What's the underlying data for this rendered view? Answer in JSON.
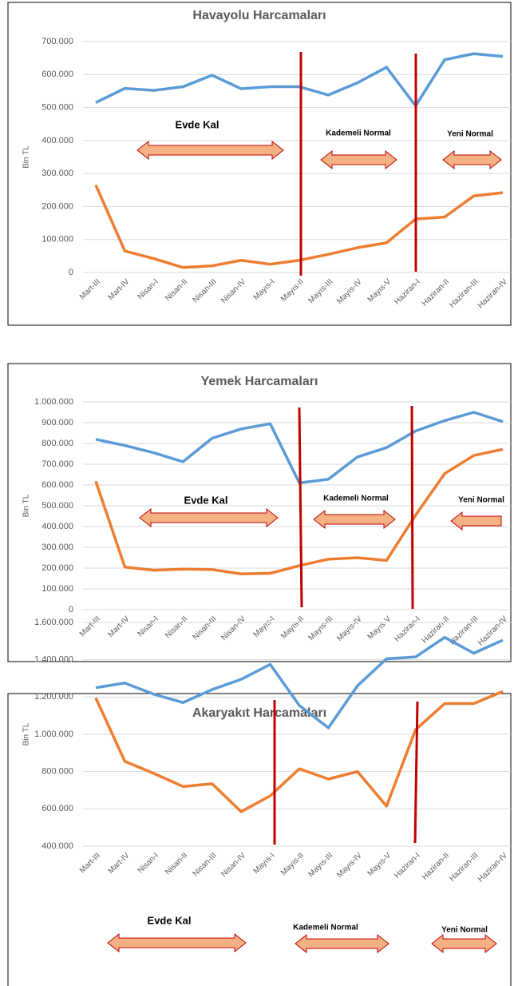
{
  "chart_data": [
    {
      "type": "line",
      "title": "Havayolu Harcamaları",
      "y_label": "Bin TL",
      "categories": [
        "Mart-III",
        "Mart-IV",
        "Nisan-I",
        "Nisan-II",
        "Nisan-III",
        "Nisan-IV",
        "Mayıs-I",
        "Mayıs-II",
        "Mayıs-III",
        "Mayıs-IV",
        "Mayıs-V",
        "Haziran-I",
        "Haziran-II",
        "Haziran-III",
        "Haziran-IV"
      ],
      "series": [
        {
          "color": "#5b9bd5",
          "values": [
            515000,
            558000,
            552000,
            563000,
            598000,
            557000,
            563000,
            563000,
            538000,
            575000,
            622000,
            505000,
            645000,
            663000,
            655000
          ]
        },
        {
          "color": "#ed7d31",
          "values": [
            265000,
            65000,
            42000,
            15000,
            20000,
            37000,
            25000,
            37000,
            55000,
            75000,
            90000,
            162000,
            168000,
            232000,
            242000
          ]
        }
      ],
      "ylim": [
        0,
        700000
      ],
      "yticks": [
        0,
        {
          "value": 100000,
          "label": "100.000"
        },
        {
          "value": 200000,
          "label": "200.000"
        },
        {
          "value": 300000,
          "label": "300.000"
        },
        {
          "value": 400000,
          "label": "400.000"
        },
        {
          "value": 500000,
          "label": "500.000"
        },
        {
          "value": 600000,
          "label": "600.000"
        },
        {
          "value": 700000,
          "label": "700.000"
        }
      ],
      "grid": true,
      "annotations": [
        "Evde Kal",
        "Kademeli Normal",
        "Yeni Normal"
      ]
    },
    {
      "type": "line",
      "title": "Yemek Harcamaları",
      "y_label": "Bin TL",
      "categories": [
        "Mart-III",
        "Mart-IV",
        "Nisan-I",
        "Nisan-II",
        "Nisan-III",
        "Nisan-IV",
        "Mayıs-I",
        "Mayıs-II",
        "Mayıs-III",
        "Mayıs-IV",
        "Mayıs-V",
        "Haziran-I",
        "Haziran-II",
        "Haziran-III",
        "Haziran-IV"
      ],
      "series": [
        {
          "color": "#5b9bd5",
          "values": [
            820000,
            790000,
            755000,
            712000,
            825000,
            870000,
            895000,
            610000,
            628000,
            735000,
            780000,
            860000,
            910000,
            950000,
            905000
          ]
        },
        {
          "color": "#ed7d31",
          "values": [
            618000,
            205000,
            190000,
            195000,
            193000,
            172000,
            175000,
            212000,
            243000,
            250000,
            237000,
            455000,
            655000,
            742000,
            772000
          ]
        }
      ],
      "ylim": [
        0,
        1000000
      ],
      "yticks": [
        0,
        {
          "value": 100000,
          "label": "100.000"
        },
        {
          "value": 200000,
          "label": "200.000"
        },
        {
          "value": 300000,
          "label": "300.000"
        },
        {
          "value": 400000,
          "label": "400.000"
        },
        {
          "value": 500000,
          "label": "500.000"
        },
        {
          "value": 600000,
          "label": "600.000"
        },
        {
          "value": 700000,
          "label": "700.000"
        },
        {
          "value": 800000,
          "label": "800.000"
        },
        {
          "value": 900000,
          "label": "900.000"
        },
        {
          "value": 1000000,
          "label": "1.000.000"
        }
      ],
      "grid": true,
      "annotations": [
        "Evde Kal",
        "Kademeli Normal",
        "Yeni Normal"
      ]
    },
    {
      "type": "line",
      "title": "Akaryakıt Harcamaları",
      "y_label": "Bin TL",
      "categories": [
        "Mart-III",
        "Mart-IV",
        "Nisan-I",
        "Nisan-II",
        "Nisan-III",
        "Nisan-IV",
        "Mayıs-I",
        "Mayıs-II",
        "Mayıs-III",
        "Mayıs-IV",
        "Mayıs-V",
        "Haziran-I",
        "Haziran-II",
        "Haziran-III",
        "Haziran-IV"
      ],
      "series": [
        {
          "color": "#5b9bd5",
          "values": [
            1250000,
            1275000,
            1215000,
            1170000,
            1240000,
            1295000,
            1375000,
            1155000,
            1035000,
            1260000,
            1405000,
            1415000,
            1520000,
            1435000,
            1505000
          ]
        },
        {
          "color": "#ed7d31",
          "values": [
            1195000,
            855000,
            790000,
            720000,
            735000,
            585000,
            670000,
            815000,
            760000,
            800000,
            615000,
            1025000,
            1165000,
            1165000,
            1230000
          ]
        }
      ],
      "ylim": [
        400000,
        1600000
      ],
      "yticks": [
        {
          "value": 400000,
          "label": "400.000"
        },
        {
          "value": 600000,
          "label": "600.000"
        },
        {
          "value": 800000,
          "label": "800.000"
        },
        {
          "value": 1000000,
          "label": "1.000.000"
        },
        {
          "value": 1200000,
          "label": "1.200.000"
        },
        {
          "value": 1400000,
          "label": "1.400.000"
        },
        {
          "value": 1600000,
          "label": "1.600.000"
        }
      ],
      "grid": true,
      "annotations": [
        "Evde Kal",
        "Kademeli Normal",
        "Yeni Normal"
      ]
    }
  ]
}
